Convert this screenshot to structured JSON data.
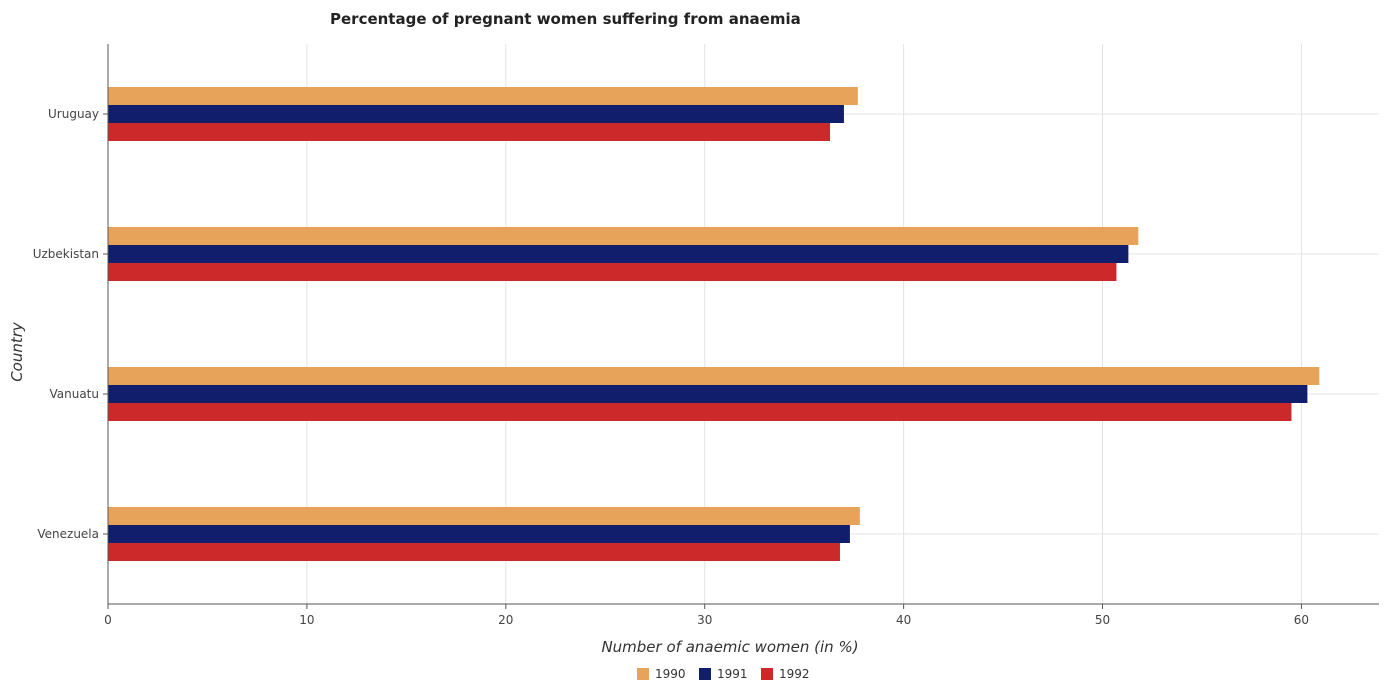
{
  "chart_data": {
    "type": "bar",
    "orientation": "horizontal",
    "title": "Percentage of pregnant women suffering from anaemia",
    "xlabel": "Number of anaemic women (in %)",
    "ylabel": "Country",
    "categories": [
      "Uruguay",
      "Uzbekistan",
      "Vanuatu",
      "Venezuela"
    ],
    "series": [
      {
        "name": "1990",
        "color": "#e8a35a",
        "values": [
          37.7,
          51.8,
          60.9,
          37.8
        ]
      },
      {
        "name": "1991",
        "color": "#111e6b",
        "values": [
          37.0,
          51.3,
          60.3,
          37.3
        ]
      },
      {
        "name": "1992",
        "color": "#cc2a2a",
        "values": [
          36.3,
          50.7,
          59.5,
          36.8
        ]
      }
    ],
    "xlim": [
      0,
      63.9
    ],
    "xticks": [
      0,
      10,
      20,
      30,
      40,
      50,
      60
    ],
    "grid": true,
    "legend_position": "bottom-center"
  }
}
